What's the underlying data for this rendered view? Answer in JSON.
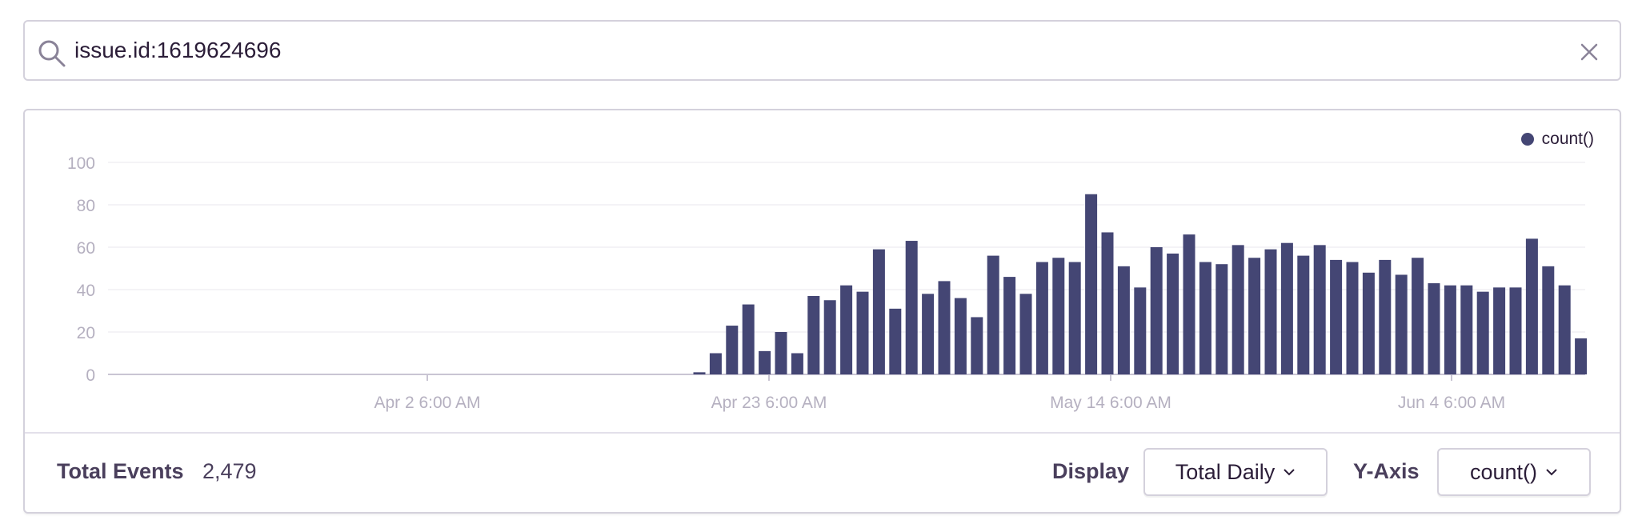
{
  "search": {
    "value": "issue.id:1619624696"
  },
  "chart_data": {
    "type": "bar",
    "series": [
      {
        "name": "count()",
        "values": [
          1,
          10,
          23,
          33,
          11,
          20,
          10,
          37,
          35,
          42,
          39,
          59,
          31,
          63,
          38,
          44,
          36,
          27,
          56,
          46,
          38,
          53,
          55,
          53,
          85,
          67,
          51,
          41,
          60,
          57,
          66,
          53,
          52,
          61,
          55,
          59,
          62,
          56,
          61,
          54,
          53,
          48,
          54,
          47,
          55,
          43,
          42,
          42,
          39,
          41,
          41,
          64,
          51,
          42,
          17
        ]
      }
    ],
    "xticks": [
      "Apr 2 6:00 AM",
      "Apr 23 6:00 AM",
      "May 14 6:00 AM",
      "Jun 4 6:00 AM"
    ],
    "yticks": [
      "0",
      "20",
      "40",
      "60",
      "80",
      "100"
    ],
    "ylim": [
      0,
      100
    ],
    "grid": true,
    "legend": "top-right",
    "bar_color": "#444674"
  },
  "legend": {
    "label": "count()"
  },
  "footer": {
    "total_label": "Total Events",
    "total_value": "2,479",
    "display_label": "Display",
    "display_value": "Total Daily",
    "yaxis_label": "Y-Axis",
    "yaxis_value": "count()"
  }
}
